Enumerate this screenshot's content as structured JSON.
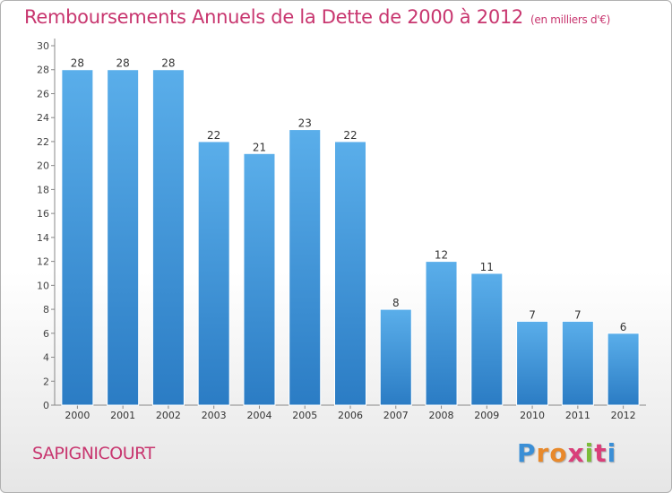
{
  "chart_data": {
    "type": "bar",
    "title": "Remboursements Annuels de la Dette de 2000 à 2012",
    "subtitle": "(en milliers d'€)",
    "categories": [
      "2000",
      "2001",
      "2002",
      "2003",
      "2004",
      "2005",
      "2006",
      "2007",
      "2008",
      "2009",
      "2010",
      "2011",
      "2012"
    ],
    "values": [
      28,
      28,
      28,
      22,
      21,
      23,
      22,
      8,
      12,
      11,
      7,
      7,
      6
    ],
    "ylim": [
      0,
      30
    ],
    "yticks": [
      0,
      2,
      4,
      6,
      8,
      10,
      12,
      14,
      16,
      18,
      20,
      22,
      24,
      26,
      28,
      30
    ],
    "grid": false,
    "bar_color": "#4a9fe0"
  },
  "footer": {
    "city": "SAPIGNICOURT",
    "logo_letters": [
      "P",
      "r",
      "o",
      "x",
      "i",
      "t",
      "i"
    ],
    "logo_colors": [
      "#3b8fd6",
      "#e8892b",
      "#e8892b",
      "#d93f7a",
      "#7cbc3a",
      "#d93f7a",
      "#3b8fd6"
    ]
  }
}
